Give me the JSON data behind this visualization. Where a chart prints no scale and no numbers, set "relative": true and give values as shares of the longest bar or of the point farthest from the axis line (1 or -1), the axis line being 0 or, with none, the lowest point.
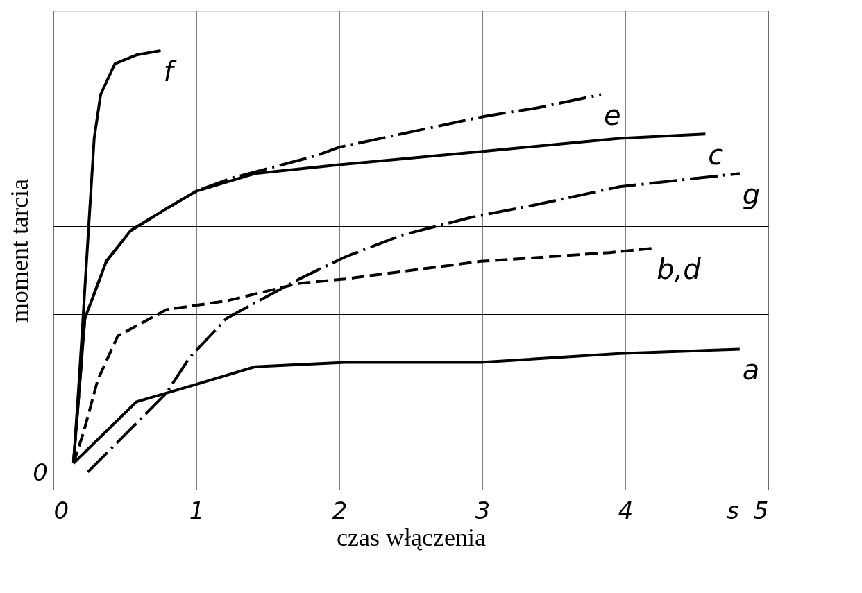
{
  "chart_data": {
    "type": "line",
    "relative": true,
    "xlabel": "czas włączenia",
    "ylabel": "moment tarcia",
    "xlim": [
      0,
      5
    ],
    "xticks": [
      0,
      1,
      2,
      3,
      4,
      {
        "value": 4.75,
        "label": "s"
      },
      5
    ],
    "grid": true,
    "annotations": [
      "0"
    ],
    "series": [
      {
        "name": "f",
        "color": "#000000",
        "line_style": "solid",
        "x": [
          0.14,
          0.18,
          0.22,
          0.285,
          0.33,
          0.43,
          0.58,
          0.75
        ],
        "values": [
          0.06,
          0.25,
          0.46,
          0.8,
          0.9,
          0.97,
          0.99,
          1.0
        ]
      },
      {
        "name": "e",
        "color": "#000000",
        "line_style": "dashdot",
        "x": [
          0.14,
          0.22,
          0.37,
          0.54,
          0.79,
          1.0,
          1.25,
          1.83,
          2.0,
          3.01,
          3.39,
          3.83
        ],
        "values": [
          0.06,
          0.39,
          0.52,
          0.59,
          0.64,
          0.68,
          0.71,
          0.76,
          0.78,
          0.85,
          0.87,
          0.9
        ]
      },
      {
        "name": "c",
        "color": "#000000",
        "line_style": "solid",
        "x": [
          0.14,
          0.22,
          0.37,
          0.54,
          0.79,
          1.0,
          1.41,
          2.0,
          2.99,
          3.96,
          4.56
        ],
        "values": [
          0.06,
          0.39,
          0.52,
          0.59,
          0.64,
          0.68,
          0.72,
          0.74,
          0.77,
          0.8,
          0.81
        ]
      },
      {
        "name": "g",
        "color": "#000000",
        "line_style": "dashdot",
        "x": [
          0.24,
          0.79,
          0.95,
          1.21,
          1.72,
          2.04,
          2.44,
          2.92,
          3.39,
          3.96,
          4.8
        ],
        "values": [
          0.04,
          0.22,
          0.3,
          0.39,
          0.48,
          0.53,
          0.58,
          0.62,
          0.65,
          0.69,
          0.72
        ]
      },
      {
        "name": "b,d",
        "color": "#000000",
        "line_style": "dashed",
        "x": [
          0.14,
          0.21,
          0.31,
          0.45,
          0.79,
          1.21,
          1.72,
          2.04,
          2.99,
          3.89,
          4.2
        ],
        "values": [
          0.06,
          0.13,
          0.25,
          0.35,
          0.41,
          0.43,
          0.47,
          0.48,
          0.52,
          0.54,
          0.55
        ]
      },
      {
        "name": "a",
        "color": "#000000",
        "line_style": "solid",
        "x": [
          0.14,
          0.58,
          1.0,
          1.41,
          2.04,
          2.99,
          3.96,
          4.8
        ],
        "values": [
          0.06,
          0.2,
          0.24,
          0.28,
          0.29,
          0.29,
          0.31,
          0.32
        ]
      }
    ]
  }
}
